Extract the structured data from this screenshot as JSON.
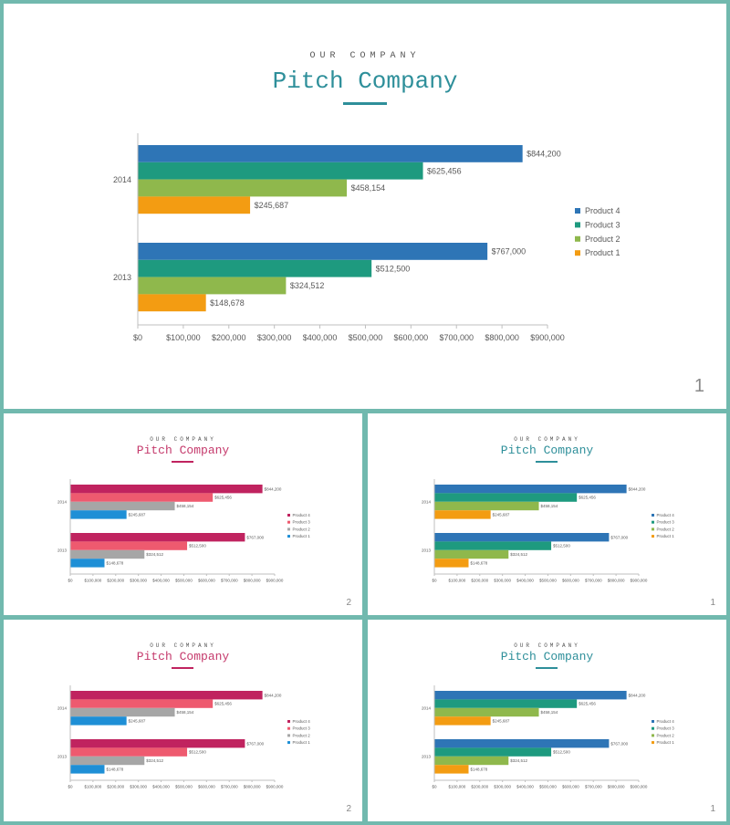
{
  "slides": [
    {
      "kicker": "OUR COMPANY",
      "title_part1": "Pitch",
      "title_part2": "Company",
      "page_number": "1",
      "theme": {
        "title_color": "#2e8f9a",
        "underline_color": "#2e8f9a"
      }
    },
    {
      "kicker": "OUR COMPANY",
      "title_part1": "Pitch",
      "title_part2": "Company",
      "page_number": "2",
      "theme": {
        "title_color": "#c53a6c",
        "underline_color": "#c0235f"
      }
    },
    {
      "kicker": "OUR COMPANY",
      "title_part1": "Pitch",
      "title_part2": "Company",
      "page_number": "1",
      "theme": {
        "title_color": "#2e8f9a",
        "underline_color": "#2e8f9a"
      }
    },
    {
      "kicker": "OUR COMPANY",
      "title_part1": "Pitch",
      "title_part2": "Company",
      "page_number": "2",
      "theme": {
        "title_color": "#c53a6c",
        "underline_color": "#c0235f"
      }
    },
    {
      "kicker": "OUR COMPANY",
      "title_part1": "Pitch",
      "title_part2": "Company",
      "page_number": "1",
      "theme": {
        "title_color": "#2e8f9a",
        "underline_color": "#2e8f9a"
      }
    }
  ],
  "chart_data": [
    {
      "type": "bar",
      "orientation": "horizontal",
      "categories": [
        "2014",
        "2013"
      ],
      "series": [
        {
          "name": "Product 4",
          "values": [
            844200,
            767000
          ],
          "labels": [
            "$844,200",
            "$767,000"
          ],
          "color": "#2e75b6"
        },
        {
          "name": "Product 3",
          "values": [
            625456,
            512500
          ],
          "labels": [
            "$625,456",
            "$512,500"
          ],
          "color": "#1e9a7f"
        },
        {
          "name": "Product 2",
          "values": [
            458154,
            324512
          ],
          "labels": [
            "$458,154",
            "$324,512"
          ],
          "color": "#8fb84c"
        },
        {
          "name": "Product 1",
          "values": [
            245687,
            148678
          ],
          "labels": [
            "$245,687",
            "$148,678"
          ],
          "color": "#f39c12"
        }
      ],
      "xlim": [
        0,
        900000
      ],
      "xticks": [
        "$0",
        "$100,000",
        "$200,000",
        "$300,000",
        "$400,000",
        "$500,000",
        "$600,000",
        "$700,000",
        "$800,000",
        "$900,000"
      ],
      "legend": "right",
      "grid": false
    },
    {
      "type": "bar",
      "orientation": "horizontal",
      "categories": [
        "2014",
        "2013"
      ],
      "series": [
        {
          "name": "Product 4",
          "values": [
            844200,
            767000
          ],
          "labels": [
            "$844,200",
            "$767,000"
          ],
          "color": "#c0235f"
        },
        {
          "name": "Product 3",
          "values": [
            625456,
            512500
          ],
          "labels": [
            "$625,456",
            "$512,500"
          ],
          "color": "#ee5a6f"
        },
        {
          "name": "Product 2",
          "values": [
            458154,
            324512
          ],
          "labels": [
            "$458,154",
            "$324,512"
          ],
          "color": "#a6a6a6"
        },
        {
          "name": "Product 1",
          "values": [
            245687,
            148678
          ],
          "labels": [
            "$245,687",
            "$148,678"
          ],
          "color": "#1e8fd6"
        }
      ],
      "xlim": [
        0,
        900000
      ],
      "xticks": [
        "$0",
        "$100,000",
        "$200,000",
        "$300,000",
        "$400,000",
        "$500,000",
        "$600,000",
        "$700,000",
        "$800,000",
        "$900,000"
      ],
      "legend": "right",
      "grid": false
    },
    {
      "type": "bar",
      "orientation": "horizontal",
      "categories": [
        "2014",
        "2013"
      ],
      "series": [
        {
          "name": "Product 4",
          "values": [
            844200,
            767000
          ],
          "labels": [
            "$844,200",
            "$767,000"
          ],
          "color": "#2e75b6"
        },
        {
          "name": "Product 3",
          "values": [
            625456,
            512500
          ],
          "labels": [
            "$625,456",
            "$512,500"
          ],
          "color": "#1e9a7f"
        },
        {
          "name": "Product 2",
          "values": [
            458154,
            324512
          ],
          "labels": [
            "$458,154",
            "$324,512"
          ],
          "color": "#8fb84c"
        },
        {
          "name": "Product 1",
          "values": [
            245687,
            148678
          ],
          "labels": [
            "$245,687",
            "$148,678"
          ],
          "color": "#f39c12"
        }
      ],
      "xlim": [
        0,
        900000
      ],
      "xticks": [
        "$0",
        "$100,000",
        "$200,000",
        "$300,000",
        "$400,000",
        "$500,000",
        "$600,000",
        "$700,000",
        "$800,000",
        "$900,000"
      ],
      "legend": "right",
      "grid": false
    },
    {
      "type": "bar",
      "orientation": "horizontal",
      "categories": [
        "2014",
        "2013"
      ],
      "series": [
        {
          "name": "Product 4",
          "values": [
            844200,
            767000
          ],
          "labels": [
            "$844,200",
            "$767,000"
          ],
          "color": "#c0235f"
        },
        {
          "name": "Product 3",
          "values": [
            625456,
            512500
          ],
          "labels": [
            "$625,456",
            "$512,500"
          ],
          "color": "#ee5a6f"
        },
        {
          "name": "Product 2",
          "values": [
            458154,
            324512
          ],
          "labels": [
            "$458,154",
            "$324,512"
          ],
          "color": "#a6a6a6"
        },
        {
          "name": "Product 1",
          "values": [
            245687,
            148678
          ],
          "labels": [
            "$245,687",
            "$148,678"
          ],
          "color": "#1e8fd6"
        }
      ],
      "xlim": [
        0,
        900000
      ],
      "xticks": [
        "$0",
        "$100,000",
        "$200,000",
        "$300,000",
        "$400,000",
        "$500,000",
        "$600,000",
        "$700,000",
        "$800,000",
        "$900,000"
      ],
      "legend": "right",
      "grid": false
    },
    {
      "type": "bar",
      "orientation": "horizontal",
      "categories": [
        "2014",
        "2013"
      ],
      "series": [
        {
          "name": "Product 4",
          "values": [
            844200,
            767000
          ],
          "labels": [
            "$844,200",
            "$767,000"
          ],
          "color": "#2e75b6"
        },
        {
          "name": "Product 3",
          "values": [
            625456,
            512500
          ],
          "labels": [
            "$625,456",
            "$512,500"
          ],
          "color": "#1e9a7f"
        },
        {
          "name": "Product 2",
          "values": [
            458154,
            324512
          ],
          "labels": [
            "$458,154",
            "$324,512"
          ],
          "color": "#8fb84c"
        },
        {
          "name": "Product 1",
          "values": [
            245687,
            148678
          ],
          "labels": [
            "$245,687",
            "$148,678"
          ],
          "color": "#f39c12"
        }
      ],
      "xlim": [
        0,
        900000
      ],
      "xticks": [
        "$0",
        "$100,000",
        "$200,000",
        "$300,000",
        "$400,000",
        "$500,000",
        "$600,000",
        "$700,000",
        "$800,000",
        "$900,000"
      ],
      "legend": "right",
      "grid": false
    }
  ]
}
